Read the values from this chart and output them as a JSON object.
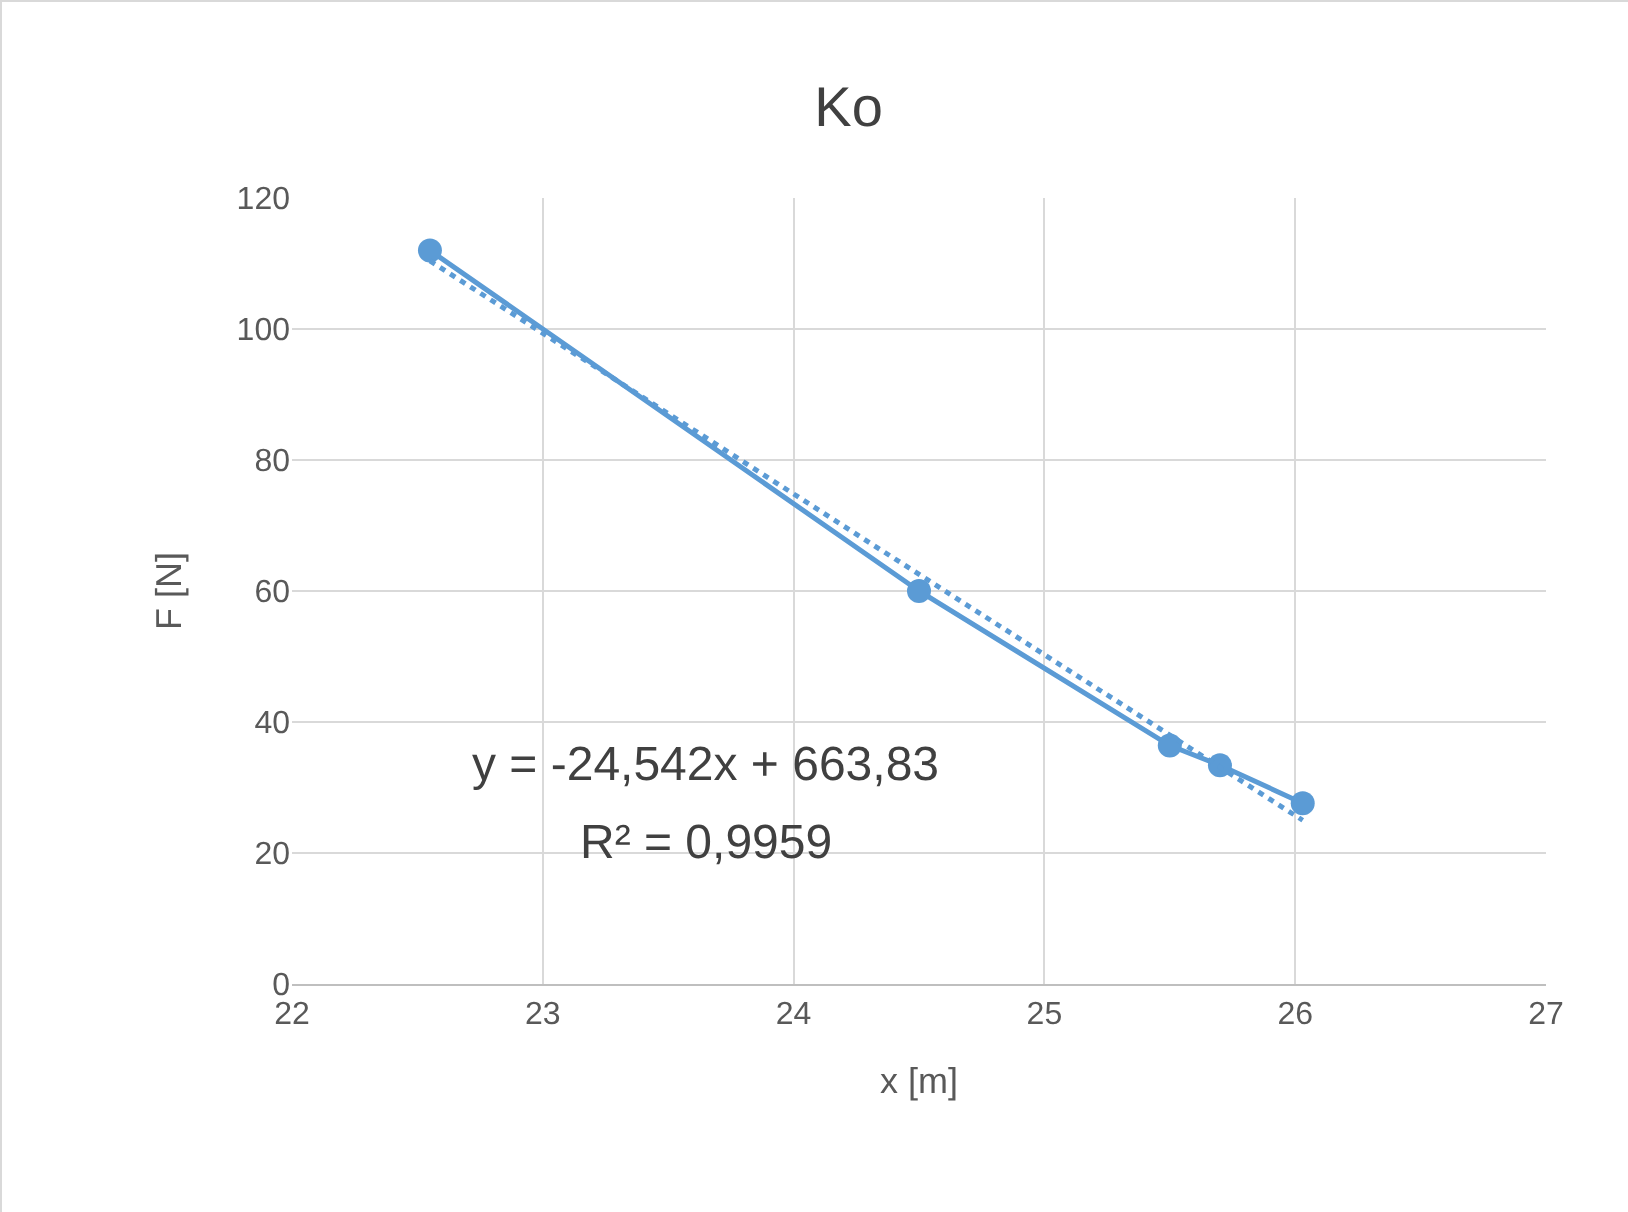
{
  "chart_data": {
    "type": "line",
    "title": "Ko",
    "xlabel": "x [m]",
    "ylabel": "F [N]",
    "x": [
      22.55,
      24.5,
      25.5,
      25.7,
      26.03
    ],
    "series": [
      {
        "color": "#5b9bd5",
        "values": [
          112,
          60,
          36.4,
          33.4,
          27.6
        ],
        "marker": "circle",
        "line_style": "solid"
      },
      {
        "type": "line",
        "color": "#5b9bd5",
        "x": [
          22.55,
          26.03
        ],
        "values": [
          110.4,
          25
        ],
        "marker": "none",
        "line_style": "dotted"
      }
    ],
    "xlim": [
      22,
      27
    ],
    "xticks": [
      22,
      23,
      24,
      25,
      26,
      27
    ],
    "ylim": [
      0,
      120
    ],
    "yticks": [
      0,
      20,
      40,
      60,
      80,
      100,
      120
    ],
    "grid": true,
    "annotations": [
      "y = -24,542x + 663,83",
      "R² = 0,9959"
    ]
  }
}
